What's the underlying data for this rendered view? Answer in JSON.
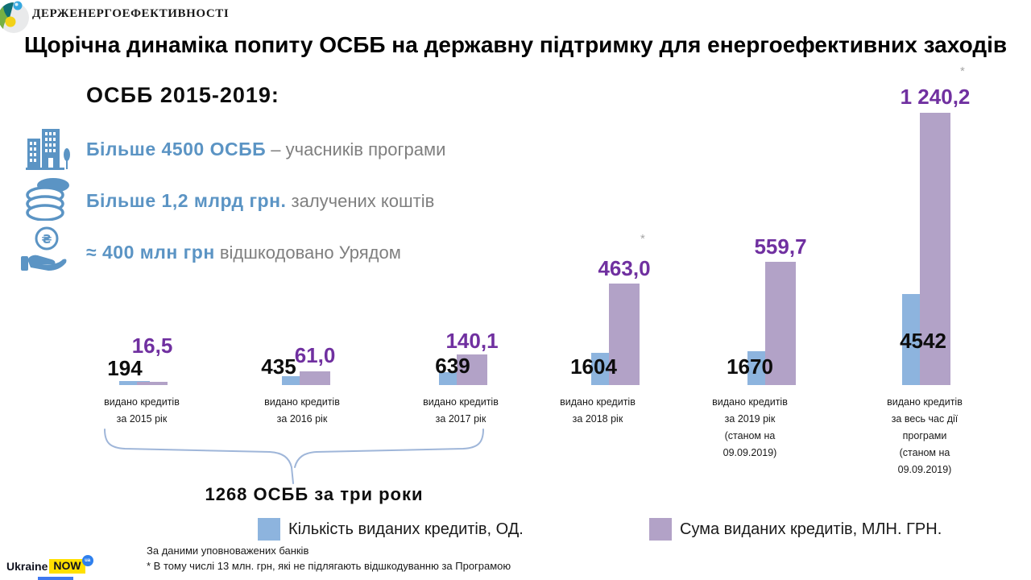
{
  "header": {
    "agency_name": "ДЕРЖЕНЕРГОЕФЕКТИВНОСТІ",
    "title": "Щорічна динаміка попиту ОСББ на державну підтримку для енергоефективних заходів"
  },
  "summary": {
    "heading": "ОСББ 2015-2019:",
    "items": [
      {
        "icon": "buildings-icon",
        "strong": "Більше 4500 ОСББ",
        "rest": " – учасників програми"
      },
      {
        "icon": "coins-icon",
        "strong": "Більше 1,2 млрд грн.",
        "rest": " залучених коштів"
      },
      {
        "icon": "hand-coin-icon",
        "strong": "≈ 400 млн грн",
        "rest": " відшкодовано Урядом"
      }
    ]
  },
  "chart_data": {
    "type": "bar",
    "title": "Щорічна динаміка попиту ОСББ на державну підтримку",
    "categories": [
      {
        "key": "2015",
        "lines": [
          "видано кредитів",
          "за 2015  рік"
        ]
      },
      {
        "key": "2016",
        "lines": [
          "видано кредитів",
          "за 2016  рік"
        ]
      },
      {
        "key": "2017",
        "lines": [
          "видано кредитів",
          "за 2017  рік"
        ]
      },
      {
        "key": "2018",
        "lines": [
          "видано кредитів",
          "за 2018  рік"
        ]
      },
      {
        "key": "2019",
        "lines": [
          "видано кредитів",
          "за 2019  рік",
          "(станом на",
          "09.09.2019)"
        ]
      },
      {
        "key": "total",
        "lines": [
          "видано кредитів",
          "за весь час дії",
          "програми",
          "(станом на",
          "09.09.2019)"
        ]
      }
    ],
    "series": [
      {
        "name": "Кількість виданих кредитів, ОД.",
        "values": [
          194,
          435,
          639,
          1604,
          1670,
          4542
        ],
        "labels": [
          "194",
          "435",
          "639",
          "1604",
          "1670",
          "4542"
        ],
        "color": "#8db4de"
      },
      {
        "name": "Сума виданих кредитів, МЛН. ГРН.",
        "values": [
          16.5,
          61.0,
          140.1,
          463.0,
          559.7,
          1240.2
        ],
        "labels": [
          "16,5",
          "61,0",
          "140,1",
          "463,0",
          "559,7",
          "1 240,2"
        ],
        "color": "#b2a2c7"
      }
    ],
    "asterisk_marker": "*",
    "asterisk_groups": [
      3,
      5
    ],
    "annotation": "1268 ОСББ за три роки",
    "axes": {
      "count_max": 4542,
      "money_max": 1240.2,
      "grid": false
    },
    "legend_position": "bottom"
  },
  "footnotes": [
    "За даними уповноважених банків",
    "* В тому числі 13 млн. грн, які не підлягають відшкодуванню за Програмою"
  ],
  "footer_logo": {
    "word1": "Ukraine",
    "word2": "NOW",
    "badge": "ua"
  },
  "colors": {
    "bar_count": "#8db4de",
    "bar_money": "#b2a2c7",
    "money_label": "#7030a0",
    "accent_blue": "#5b94c4",
    "grey_text": "#7f7f7f",
    "brace": "#9fb6d9"
  }
}
